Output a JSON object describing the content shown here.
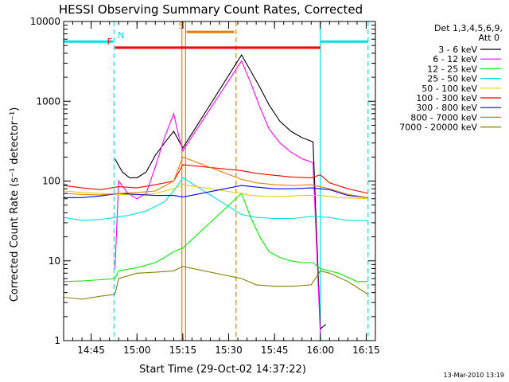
{
  "chart_data": {
    "type": "line",
    "title": "HESSI Observing Summary Count Rates, Corrected",
    "xlabel": "Start Time (29-Oct-02 14:37:22)",
    "ylabel": "Corrected Count Rate (s⁻¹ detector⁻¹)",
    "yscale": "log",
    "ylim": [
      1,
      10000
    ],
    "xlim_minutes": [
      14.6,
      16.3
    ],
    "y_ticks": [
      "1",
      "10",
      "100",
      "1000",
      "10000"
    ],
    "x_ticks": [
      {
        "label": "14:45",
        "t": 14.75
      },
      {
        "label": "15:00",
        "t": 15.0
      },
      {
        "label": "15:15",
        "t": 15.25
      },
      {
        "label": "15:30",
        "t": 15.5
      },
      {
        "label": "15:45",
        "t": 15.75
      },
      {
        "label": "16:00",
        "t": 16.0
      },
      {
        "label": "16:15",
        "t": 16.25
      }
    ],
    "legend": {
      "placement": "right",
      "header": [
        "Det 1,3,4,5,6,9,",
        "Att 0"
      ]
    },
    "series": [
      {
        "name": "3 - 6 keV",
        "color": "#000000",
        "points": [
          [
            14.88,
            190
          ],
          [
            14.92,
            130
          ],
          [
            14.96,
            110
          ],
          [
            15.0,
            110
          ],
          [
            15.05,
            130
          ],
          [
            15.1,
            210
          ],
          [
            15.15,
            300
          ],
          [
            15.2,
            420
          ],
          [
            15.25,
            260
          ],
          [
            15.57,
            3800
          ],
          [
            15.62,
            2400
          ],
          [
            15.67,
            1500
          ],
          [
            15.72,
            900
          ],
          [
            15.78,
            560
          ],
          [
            15.84,
            420
          ],
          [
            15.9,
            350
          ],
          [
            15.96,
            310
          ],
          [
            16.0,
            1.4
          ],
          [
            16.03,
            1.6
          ]
        ]
      },
      {
        "name": "6 - 12 keV",
        "color": "#ff00ff",
        "points": [
          [
            14.88,
            8
          ],
          [
            14.9,
            100
          ],
          [
            14.95,
            70
          ],
          [
            15.0,
            60
          ],
          [
            15.05,
            70
          ],
          [
            15.1,
            150
          ],
          [
            15.15,
            350
          ],
          [
            15.2,
            700
          ],
          [
            15.23,
            350
          ],
          [
            15.25,
            240
          ],
          [
            15.57,
            3200
          ],
          [
            15.62,
            1700
          ],
          [
            15.67,
            850
          ],
          [
            15.72,
            450
          ],
          [
            15.78,
            300
          ],
          [
            15.84,
            230
          ],
          [
            15.9,
            190
          ],
          [
            15.96,
            170
          ],
          [
            16.0,
            1.2
          ]
        ]
      },
      {
        "name": "12 - 25 keV",
        "color": "#00ee00",
        "points": [
          [
            14.6,
            5.5
          ],
          [
            14.7,
            5.6
          ],
          [
            14.8,
            5.8
          ],
          [
            14.88,
            6.0
          ],
          [
            14.9,
            7.5
          ],
          [
            15.0,
            8.2
          ],
          [
            15.1,
            9.5
          ],
          [
            15.15,
            11
          ],
          [
            15.2,
            13
          ],
          [
            15.25,
            14.5
          ],
          [
            15.57,
            70
          ],
          [
            15.62,
            35
          ],
          [
            15.67,
            20
          ],
          [
            15.72,
            13
          ],
          [
            15.78,
            11
          ],
          [
            15.84,
            10
          ],
          [
            15.9,
            9.5
          ],
          [
            15.96,
            9.5
          ],
          [
            16.0,
            8
          ],
          [
            16.1,
            7
          ],
          [
            16.2,
            5.5
          ],
          [
            16.26,
            5.5
          ]
        ]
      },
      {
        "name": "25 - 50 keV",
        "color": "#00e0e0",
        "points": [
          [
            14.6,
            35
          ],
          [
            14.7,
            32
          ],
          [
            14.8,
            33
          ],
          [
            14.88,
            35
          ],
          [
            14.95,
            37
          ],
          [
            15.05,
            42
          ],
          [
            15.15,
            55
          ],
          [
            15.2,
            75
          ],
          [
            15.25,
            110
          ],
          [
            15.57,
            38
          ],
          [
            15.65,
            35
          ],
          [
            15.75,
            34
          ],
          [
            15.85,
            34
          ],
          [
            15.95,
            36
          ],
          [
            16.05,
            35
          ],
          [
            16.15,
            32
          ],
          [
            16.26,
            32
          ]
        ]
      },
      {
        "name": "50 - 100 keV",
        "color": "#e0d000",
        "points": [
          [
            14.6,
            75
          ],
          [
            14.7,
            72
          ],
          [
            14.8,
            70
          ],
          [
            14.9,
            68
          ],
          [
            15.0,
            67
          ],
          [
            15.1,
            70
          ],
          [
            15.2,
            80
          ],
          [
            15.25,
            90
          ],
          [
            15.57,
            70
          ],
          [
            15.62,
            66
          ],
          [
            15.7,
            64
          ],
          [
            15.8,
            64
          ],
          [
            15.9,
            66
          ],
          [
            16.0,
            66
          ],
          [
            16.1,
            62
          ],
          [
            16.26,
            60
          ]
        ]
      },
      {
        "name": "100 - 300 keV",
        "color": "#ff0000",
        "points": [
          [
            14.6,
            88
          ],
          [
            14.7,
            82
          ],
          [
            14.8,
            78
          ],
          [
            14.9,
            85
          ],
          [
            15.0,
            82
          ],
          [
            15.1,
            90
          ],
          [
            15.2,
            100
          ],
          [
            15.25,
            160
          ],
          [
            15.57,
            135
          ],
          [
            15.65,
            125
          ],
          [
            15.75,
            118
          ],
          [
            15.85,
            112
          ],
          [
            15.95,
            110
          ],
          [
            16.0,
            120
          ],
          [
            16.05,
            95
          ],
          [
            16.15,
            80
          ],
          [
            16.26,
            70
          ]
        ]
      },
      {
        "name": "300 - 800 keV",
        "color": "#0000ff",
        "points": [
          [
            14.6,
            62
          ],
          [
            14.7,
            62
          ],
          [
            14.8,
            65
          ],
          [
            14.9,
            70
          ],
          [
            15.0,
            68
          ],
          [
            15.1,
            66
          ],
          [
            15.2,
            66
          ],
          [
            15.25,
            63
          ],
          [
            15.57,
            88
          ],
          [
            15.65,
            84
          ],
          [
            15.75,
            80
          ],
          [
            15.85,
            80
          ],
          [
            15.95,
            82
          ],
          [
            16.05,
            78
          ],
          [
            16.15,
            66
          ],
          [
            16.26,
            62
          ]
        ]
      },
      {
        "name": "800 - 7000 keV",
        "color": "#e08000",
        "points": [
          [
            14.6,
            70
          ],
          [
            14.7,
            68
          ],
          [
            14.8,
            67
          ],
          [
            14.9,
            70
          ],
          [
            15.0,
            72
          ],
          [
            15.1,
            75
          ],
          [
            15.2,
            100
          ],
          [
            15.25,
            200
          ],
          [
            15.57,
            105
          ],
          [
            15.65,
            95
          ],
          [
            15.75,
            90
          ],
          [
            15.85,
            88
          ],
          [
            15.95,
            90
          ],
          [
            16.05,
            80
          ],
          [
            16.15,
            68
          ],
          [
            16.26,
            62
          ]
        ]
      },
      {
        "name": "7000 - 20000 keV",
        "color": "#808000",
        "points": [
          [
            14.6,
            3.5
          ],
          [
            14.7,
            3.3
          ],
          [
            14.8,
            3.6
          ],
          [
            14.88,
            3.8
          ],
          [
            14.9,
            6.0
          ],
          [
            15.0,
            7.0
          ],
          [
            15.1,
            7.2
          ],
          [
            15.2,
            7.5
          ],
          [
            15.25,
            8.5
          ],
          [
            15.57,
            6.0
          ],
          [
            15.65,
            5.0
          ],
          [
            15.75,
            4.8
          ],
          [
            15.85,
            4.8
          ],
          [
            15.95,
            5.0
          ],
          [
            16.0,
            7.5
          ],
          [
            16.05,
            7.0
          ],
          [
            16.15,
            5.5
          ],
          [
            16.26,
            3.8
          ]
        ]
      }
    ],
    "flags": [
      {
        "label": "N",
        "color": "#00e0e0",
        "level": 5600,
        "segments": [
          [
            14.6,
            14.87
          ],
          [
            16.0,
            16.26
          ]
        ]
      },
      {
        "label": "S",
        "color": "#e08000",
        "level": 7400,
        "segments": [
          [
            15.27,
            15.53
          ]
        ]
      },
      {
        "label": "F",
        "color": "#ff0000",
        "level": 4700,
        "segments": [
          [
            14.88,
            16.0
          ]
        ]
      }
    ],
    "vertical_markers": [
      {
        "t": 14.875,
        "color": "#00e0e0",
        "style": "dashed"
      },
      {
        "t": 15.245,
        "color": "#e08000",
        "style": "solid"
      },
      {
        "t": 15.265,
        "color": "#e08000",
        "style": "solid"
      },
      {
        "t": 15.54,
        "color": "#e08000",
        "style": "dashed"
      },
      {
        "t": 16.0,
        "color": "#00e0e0",
        "style": "solid"
      },
      {
        "t": 16.26,
        "color": "#00e0e0",
        "style": "dashed"
      }
    ]
  },
  "footer": {
    "timestamp": "13-Mar-2010 13:19"
  }
}
